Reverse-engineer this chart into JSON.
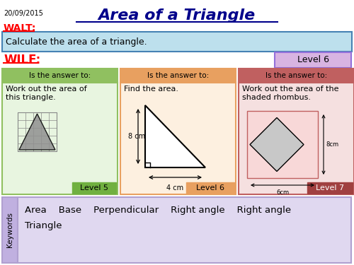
{
  "title": "Area of a Triangle",
  "date": "20/09/2015",
  "walt_label": "WALT:",
  "walt_text": "Calculate the area of a triangle.",
  "wilf_label": "WILF:",
  "level6_box": "Level 6",
  "col1_header": "Is the answer to:",
  "col2_header": "Is the answer to:",
  "col3_header": "Is the answer to:",
  "col1_text": "Work out the area of\nthis triangle.",
  "col2_text": "Find the area.",
  "col3_text": "Work out the area of the\nshaded rhombus.",
  "col1_level": "Level 5",
  "col2_level": "Level 6",
  "col3_level": "Level 7",
  "col2_dim1": "8 cm",
  "col2_dim2": "4 cm",
  "col3_dim1": "8cm",
  "col3_dim2": "6cm",
  "keywords_label": "Keywords",
  "keywords_line1": "Area    Base    Perpendicular    Right angle    Right angle",
  "keywords_line2": "Triangle",
  "bg_color": "#ffffff",
  "title_color": "#00008B",
  "walt_color": "#ff0000",
  "wilf_color": "#ff0000",
  "walt_box_color": "#bde0ed",
  "walt_box_border": "#4682b4",
  "level6_box_color": "#d8b4e2",
  "level6_box_border": "#9370db",
  "col1_header_bg": "#90c060",
  "col1_bg": "#e8f5e0",
  "col1_border": "#90c060",
  "col1_level_bg": "#70b040",
  "col2_header_bg": "#e8a060",
  "col2_bg": "#fdf0e0",
  "col2_border": "#e8a060",
  "col2_level_bg": "#e8a060",
  "col3_header_bg": "#c06060",
  "col3_bg": "#f5e0e0",
  "col3_border": "#c06060",
  "col3_level_bg": "#a04040",
  "keywords_bg": "#e0d8f0",
  "keywords_border": "#b0a0d0",
  "keywords_side_bg": "#c0b0e0"
}
